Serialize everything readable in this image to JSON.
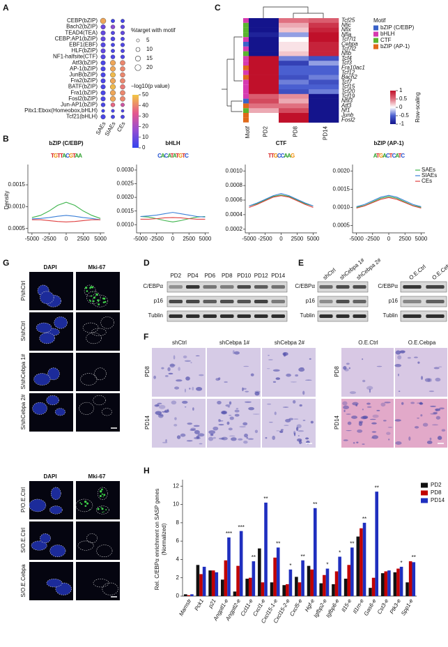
{
  "panel_labels": [
    "A",
    "C",
    "B",
    "G",
    "D",
    "E",
    "F",
    "H"
  ],
  "chart_data": [
    {
      "type": "dot",
      "categories": [
        "CEBP(bZIP)",
        "Bach2(bZIP)",
        "TEAD4(TEA)",
        "CEBP:AP1(bZIP)",
        "EBF1(EBF)",
        "HLF(bZIP)",
        "NF1-halfsite(CTF)",
        "Atf3(bZIP)",
        "AP-1(bZIP)",
        "JunB(bZIP)",
        "Fra2(bZIP)",
        "BATF(bZIP)",
        "Fra1(bZIP)",
        "Fosl2(bZIP)",
        "Jun-AP1(bZIP)",
        "Pitx1:Ebox(Homeobox,bHLH)",
        "Tcf21(bHLH)"
      ],
      "series": [
        {
          "name": "SAEs",
          "values": [
            45,
            10,
            8,
            8,
            6,
            8,
            6,
            4,
            4,
            4,
            4,
            4,
            4,
            4,
            4,
            2,
            4
          ],
          "sizes": [
            18,
            12,
            12,
            12,
            12,
            12,
            12,
            12,
            12,
            12,
            12,
            12,
            12,
            12,
            10,
            6,
            12
          ]
        },
        {
          "name": "SIAEs",
          "values": [
            2,
            15,
            6,
            5,
            4,
            4,
            5,
            45,
            45,
            48,
            45,
            48,
            45,
            45,
            35,
            4,
            4
          ],
          "sizes": [
            8,
            10,
            8,
            10,
            8,
            8,
            10,
            16,
            15,
            15,
            16,
            16,
            16,
            16,
            10,
            6,
            8
          ]
        },
        {
          "name": "CEs",
          "values": [
            3,
            8,
            8,
            5,
            5,
            5,
            5,
            40,
            40,
            40,
            40,
            38,
            40,
            40,
            28,
            5,
            5
          ],
          "sizes": [
            8,
            9,
            9,
            8,
            9,
            8,
            9,
            14,
            13,
            13,
            14,
            13,
            14,
            14,
            8,
            5,
            8
          ]
        }
      ],
      "size_title": "%target with motif",
      "size_ticks": [
        5,
        10,
        15,
        20
      ],
      "color_title": "−log10(p value)",
      "color_lim": [
        0,
        50
      ],
      "color_ticks": [
        50,
        40,
        30,
        20,
        10,
        0
      ]
    },
    {
      "type": "heatmap",
      "categories": [
        "Tcf25",
        "Nfic",
        "Nfix",
        "Nfia",
        "Tcf7l1",
        "Cebpa",
        "Tcf7l2",
        "Nfib",
        "Tcf4",
        "Tcf3",
        "Fra10ac1",
        "Tcf12",
        "Bach2",
        "Tcf7",
        "Tcf15",
        "Tcf20",
        "Tcf19",
        "Nfil3",
        "Atf3",
        "Nf1",
        "Junb",
        "Fosl2"
      ],
      "motif": [
        "bHLH",
        "CTF",
        "CTF",
        "CTF",
        "bHLH",
        "bZIP (C/EBP)",
        "bHLH",
        "CTF",
        "bHLH",
        "bHLH",
        "bZIP (AP-1)",
        "bHLH",
        "bZIP (AP-1)",
        "bHLH",
        "bHLH",
        "bHLH",
        "bHLH",
        "bZIP (C/EBP)",
        "bZIP (AP-1)",
        "CTF",
        "bZIP (AP-1)",
        "bZIP (AP-1)"
      ],
      "strip_label": "Motif",
      "series": [
        {
          "name": "PD2",
          "values": [
            -1,
            -1,
            -1,
            -0.9,
            -1,
            -1,
            -1,
            -1,
            1,
            1,
            1,
            1,
            1,
            1,
            1,
            1,
            0.6,
            0.7,
            0.5,
            0.3,
            0,
            0
          ]
        },
        {
          "name": "PD8",
          "values": [
            0.5,
            0.3,
            0.2,
            -0.3,
            0,
            0.1,
            0.1,
            0.2,
            -0.4,
            -0.7,
            -0.5,
            -0.5,
            -0.6,
            -0.4,
            -0.5,
            -0.6,
            0.4,
            0.3,
            0.5,
            0.7,
            1,
            1
          ]
        },
        {
          "name": "PD14",
          "values": [
            0.6,
            0.8,
            0.9,
            1,
            1,
            0.9,
            0.9,
            0.9,
            -0.6,
            -0.3,
            -0.5,
            -0.5,
            -0.4,
            -0.6,
            -0.5,
            -0.4,
            -1,
            -1,
            -1,
            -1,
            -1,
            -1
          ]
        }
      ],
      "legend_title": "Motif",
      "motif_families": [
        {
          "name": "bZIP (C/EBP)",
          "color": "#3a62c8"
        },
        {
          "name": "bHLH",
          "color": "#d63ab0"
        },
        {
          "name": "CTF",
          "color": "#5ab52e"
        },
        {
          "name": "bZIP (AP-1)",
          "color": "#e0691a"
        }
      ],
      "colorbar_title": "Row-scaling",
      "color_lim": [
        -1,
        1
      ],
      "color_ticks": [
        1,
        0.5,
        0,
        -0.5,
        -1
      ]
    },
    {
      "type": "line",
      "title": "bZIP (C/EBP)",
      "logo": "TGTTACGTAA",
      "ylabel": "Density",
      "x": [
        -5000,
        -3750,
        -2500,
        -1250,
        0,
        1250,
        2500,
        3750,
        5000
      ],
      "series": [
        {
          "color": "#3cb44b",
          "values": [
            0.00075,
            0.0008,
            0.0009,
            0.00103,
            0.0011,
            0.00103,
            0.0009,
            0.0008,
            0.00073
          ]
        },
        {
          "color": "#3a7fd8",
          "values": [
            0.00072,
            0.00073,
            0.00075,
            0.00078,
            0.0008,
            0.00078,
            0.00075,
            0.00073,
            0.0007
          ]
        },
        {
          "color": "#e04040",
          "values": [
            0.0007,
            0.0007,
            0.00068,
            0.00066,
            0.00065,
            0.00066,
            0.00068,
            0.0007,
            0.0007
          ]
        }
      ],
      "xlim": [
        -5600,
        5600
      ],
      "xticks": [
        -5000,
        -2500,
        0,
        2500,
        5000
      ],
      "ylim": [
        0.0004,
        0.0019
      ],
      "yticks": [
        0.0005,
        {
          "value": 0.001,
          "label": "0.0010"
        },
        0.0015
      ]
    },
    {
      "type": "line",
      "title": "bHLH",
      "logo": "CACATATGTC",
      "x": [
        -5000,
        -3750,
        -2500,
        -1250,
        0,
        1250,
        2500,
        3750,
        5000
      ],
      "series": [
        {
          "color": "#3cb44b",
          "values": [
            0.0013,
            0.00128,
            0.00122,
            0.00115,
            0.0011,
            0.00115,
            0.00122,
            0.00128,
            0.0013
          ]
        },
        {
          "color": "#3a7fd8",
          "values": [
            0.0013,
            0.00132,
            0.00135,
            0.0014,
            0.00145,
            0.0014,
            0.00135,
            0.0013,
            0.00128
          ]
        },
        {
          "color": "#e04040",
          "values": [
            0.0012,
            0.0012,
            0.00122,
            0.00125,
            0.00126,
            0.00125,
            0.00122,
            0.0012,
            0.0012
          ]
        }
      ],
      "xlim": [
        -5600,
        5600
      ],
      "xticks": [
        -5000,
        -2500,
        0,
        2500,
        5000
      ],
      "ylim": [
        0.0007,
        0.0031
      ],
      "yticks": [
        {
          "value": 0.001,
          "label": "0.0010"
        },
        0.0015,
        {
          "value": 0.002,
          "label": "0.0020"
        },
        0.0025,
        {
          "value": 0.003,
          "label": "0.0030"
        }
      ]
    },
    {
      "type": "line",
      "title": "CTF",
      "logo": "TTGCCAAG",
      "x": [
        -5000,
        -3750,
        -2500,
        -1250,
        0,
        1250,
        2500,
        3750,
        5000
      ],
      "series": [
        {
          "color": "#3cb44b",
          "values": [
            0.00052,
            0.00055,
            0.0006,
            0.00065,
            0.00067,
            0.00065,
            0.0006,
            0.00055,
            0.00052
          ]
        },
        {
          "color": "#3a7fd8",
          "values": [
            0.00052,
            0.00056,
            0.00061,
            0.00066,
            0.00069,
            0.00066,
            0.00061,
            0.00056,
            0.00052
          ]
        },
        {
          "color": "#e04040",
          "values": [
            0.0005,
            0.00054,
            0.00059,
            0.00064,
            0.00066,
            0.00064,
            0.00059,
            0.00054,
            0.0005
          ]
        }
      ],
      "xlim": [
        -5600,
        5600
      ],
      "xticks": [
        -5000,
        -2500,
        0,
        2500,
        5000
      ],
      "ylim": [
        0.00015,
        0.00105
      ],
      "yticks": [
        0.0002,
        0.0004,
        0.0006,
        0.0008,
        {
          "value": 0.001,
          "label": "0.0010"
        }
      ]
    },
    {
      "type": "line",
      "title": "bZIP (AP-1)",
      "logo": "ATGACTCATC",
      "legend": "upper right",
      "x": [
        -5000,
        -3750,
        -2500,
        -1250,
        0,
        1250,
        2500,
        3750,
        5000
      ],
      "series": [
        {
          "name": "SAEs",
          "color": "#3cb44b",
          "values": [
            0.001,
            0.00105,
            0.00115,
            0.00125,
            0.0013,
            0.00125,
            0.00115,
            0.00105,
            0.001
          ]
        },
        {
          "name": "SIAEs",
          "color": "#3a7fd8",
          "values": [
            0.00102,
            0.00108,
            0.00118,
            0.00128,
            0.00133,
            0.00128,
            0.00118,
            0.00108,
            0.00102
          ]
        },
        {
          "name": "CEs",
          "color": "#e04040",
          "values": [
            0.00098,
            0.00104,
            0.00113,
            0.00122,
            0.00127,
            0.00122,
            0.00113,
            0.00104,
            0.00098
          ]
        }
      ],
      "xlim": [
        -5600,
        5600
      ],
      "xticks": [
        -5000,
        -2500,
        0,
        2500,
        5000
      ],
      "ylim": [
        0.0003,
        0.0021
      ],
      "yticks": [
        0.0005,
        {
          "value": 0.001,
          "label": "0.0010"
        },
        0.0015,
        {
          "value": 0.002,
          "label": "0.0020"
        }
      ]
    },
    {
      "type": "bar",
      "ylabel": [
        "Rel. C/EBPα enrichment on SASP genes",
        "(Normalized)"
      ],
      "categories": [
        "Mamstr",
        "Pck1",
        "p21",
        "Angptl1-e",
        "Angptl2-e",
        "Ccl11-e",
        "Cxcl1-e",
        "Cxcl15-1-e",
        "Cxcl15-2-e",
        "Cxcl5-e",
        "Hgf-e",
        "Igfbp2-e",
        "Igfbp6-e",
        "Il15-e",
        "Il1rn-e",
        "Gas6-e",
        "Cst3-e",
        "Ptk3-e",
        "Spp1-e"
      ],
      "series": [
        {
          "name": "PD2",
          "color": "#111111",
          "values": [
            0.2,
            3.4,
            2.8,
            1.8,
            0.5,
            1.9,
            5.2,
            1.5,
            1.2,
            2.1,
            3.3,
            1.4,
            1.3,
            1.9,
            6.5,
            0.9,
            2.5,
            2.6,
            1.5
          ]
        },
        {
          "name": "PD8",
          "color": "#c00000",
          "values": [
            0.1,
            2.4,
            2.8,
            3.9,
            3.3,
            2.0,
            1.5,
            4.2,
            1.3,
            1.5,
            2.9,
            2.3,
            2.7,
            3.4,
            7.4,
            2.0,
            2.7,
            3.0,
            3.8
          ]
        },
        {
          "name": "PD14",
          "color": "#1f2fbf",
          "values": [
            0.2,
            3.2,
            2.6,
            6.4,
            7.1,
            3.8,
            10.2,
            5.3,
            2.9,
            3.9,
            9.6,
            3.0,
            4.3,
            5.3,
            8.0,
            11.4,
            2.8,
            3.2,
            3.7
          ]
        }
      ],
      "significance": [
        null,
        null,
        null,
        "***",
        "***",
        "**",
        "**",
        "**",
        "*",
        "**",
        "**",
        "*",
        "*",
        "**",
        "**",
        "**",
        null,
        "*",
        "**"
      ],
      "ylim": [
        0,
        12.4
      ],
      "yticks": [
        0,
        2,
        4,
        6,
        8,
        10,
        12
      ],
      "legend": "upper right"
    }
  ],
  "blots": [
    {
      "lanes": [
        "PD2",
        "PD4",
        "PD6",
        "PD8",
        "PD10",
        "PD12",
        "PD14"
      ],
      "rows": [
        "C/EBPα",
        "p16",
        "Tublin"
      ]
    },
    {
      "lanes": [
        "shCtrl",
        "shCebpa 1#",
        "shCebpa 2#"
      ],
      "rows": [
        "C/EBPα",
        "p16",
        "Tublin"
      ]
    },
    {
      "lanes": [
        "O.E.Ctrl",
        "O.E.Cebpa"
      ],
      "rows": [
        "C/EBPα",
        "p16",
        "Tublin"
      ]
    }
  ],
  "staining": [
    {
      "columns": [
        "shCtrl",
        "shCebpa 1#",
        "shCebpa 2#"
      ],
      "rows": [
        "PD8",
        "PD14"
      ]
    },
    {
      "columns": [
        "O.E.Ctrl",
        "O.E.Cebpa"
      ],
      "rows": [
        "PD8",
        "PD14"
      ]
    }
  ],
  "immunofluorescence": [
    {
      "channels": [
        "DAPI",
        "Mki-67"
      ],
      "rows": [
        "P/shCtrl",
        "S/shCtrl",
        "S/shCebpa 1#",
        "S/shCebpa 2#"
      ]
    },
    {
      "channels": [
        "DAPI",
        "Mki-67"
      ],
      "rows": [
        "P/O.E.Ctrl",
        "S/O.E.Ctrl",
        "S/O.E.Cebpa"
      ]
    }
  ]
}
